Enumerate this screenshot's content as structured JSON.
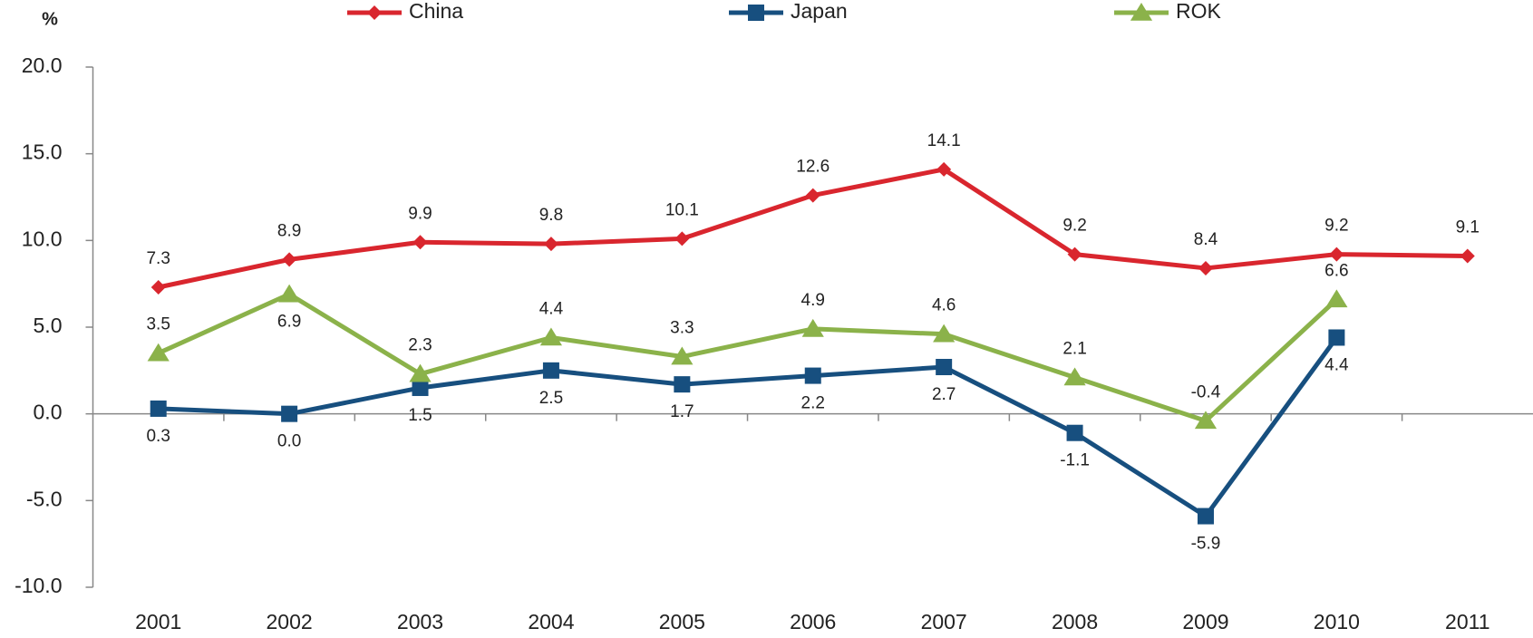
{
  "chart_data": {
    "type": "line",
    "y_label": "%",
    "categories": [
      "2001",
      "2002",
      "2003",
      "2004",
      "2005",
      "2006",
      "2007",
      "2008",
      "2009",
      "2010",
      "2011"
    ],
    "series": [
      {
        "name": "China",
        "color": "#d9262e",
        "marker": "diamond",
        "values": [
          7.3,
          8.9,
          9.9,
          9.8,
          10.1,
          12.6,
          14.1,
          9.2,
          8.4,
          9.2,
          9.1
        ],
        "value_labels": [
          "7.3",
          "8.9",
          "9.9",
          "9.8",
          "10.1",
          "12.6",
          "14.1",
          "9.2",
          "8.4",
          "9.2",
          "9.1"
        ]
      },
      {
        "name": "Japan",
        "color": "#174f7f",
        "marker": "square",
        "values": [
          0.3,
          0.0,
          1.5,
          2.5,
          1.7,
          2.2,
          2.7,
          -1.1,
          -5.9,
          4.4,
          null
        ],
        "value_labels": [
          "0.3",
          "0.0",
          "1.5",
          "2.5",
          "1.7",
          "2.2",
          "2.7",
          "-1.1",
          "-5.9",
          "4.4",
          null
        ]
      },
      {
        "name": "ROK",
        "color": "#8bb24a",
        "marker": "triangle",
        "values": [
          3.5,
          6.9,
          2.3,
          4.4,
          3.3,
          4.9,
          4.6,
          2.1,
          -0.4,
          6.6,
          null
        ],
        "value_labels": [
          "3.5",
          "6.9",
          "2.3",
          "4.4",
          "3.3",
          "4.9",
          "4.6",
          "2.1",
          "-0.4",
          "6.6",
          null
        ]
      }
    ],
    "ylim": [
      -10,
      20
    ],
    "yticks": [
      {
        "value": -10,
        "label": "-10.0"
      },
      {
        "value": -5,
        "label": "-5.0"
      },
      {
        "value": 0,
        "label": "0.0"
      },
      {
        "value": 5,
        "label": "5.0"
      },
      {
        "value": 10,
        "label": "10.0"
      },
      {
        "value": 15,
        "label": "15.0"
      },
      {
        "value": 20,
        "label": "20.0"
      }
    ],
    "legend": "top",
    "grid": false
  }
}
